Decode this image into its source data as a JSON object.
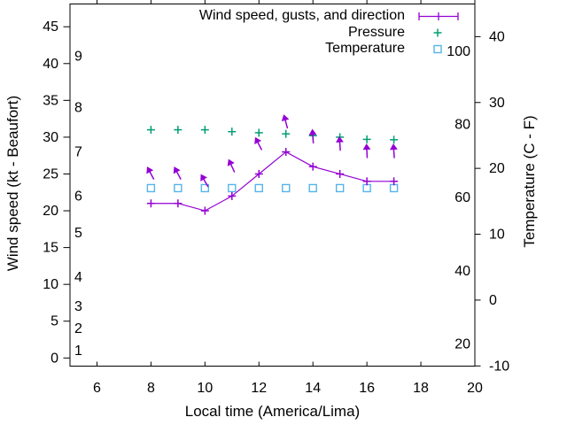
{
  "figure_bg": "#ffffff",
  "text_color": "#000000",
  "chart_data": {
    "type": "line",
    "x_axis": {
      "label": "Local time (America/Lima)",
      "range": [
        5,
        20
      ],
      "tick_labels": [
        6,
        8,
        10,
        12,
        14,
        16,
        18,
        20
      ]
    },
    "y_axis_left": {
      "label": "Wind speed (kt - Beaufort)",
      "range_kt": [
        -1,
        48
      ],
      "tick_labels_kt": [
        0,
        5,
        10,
        15,
        20,
        25,
        30,
        35,
        40,
        45
      ],
      "beaufort_tick_labels": [
        1,
        2,
        3,
        4,
        5,
        6,
        7,
        8,
        9
      ],
      "beaufort_label_positions_kt": [
        1,
        4,
        7,
        11,
        17,
        22,
        28,
        34,
        41
      ]
    },
    "y_axis_right": {
      "label": "Temperature (C - F)",
      "range_c": [
        -10,
        45
      ],
      "tick_labels_c": [
        -10,
        0,
        10,
        20,
        30,
        40
      ],
      "fahrenheit_tick_labels": [
        20,
        40,
        60,
        80,
        100
      ]
    },
    "hours": [
      8,
      9,
      10,
      11,
      12,
      13,
      14,
      15,
      16,
      17
    ],
    "series": [
      {
        "name": "Wind speed, gusts, and direction",
        "color": "#9400d3",
        "style": "line with plus markers and direction arrows at gust height",
        "wind_kt": [
          21,
          21,
          20,
          22,
          25,
          28,
          26,
          25,
          24,
          24
        ],
        "gust_kt": [
          25,
          25,
          24,
          26,
          29,
          32,
          30,
          29,
          28,
          28
        ],
        "arrow_angles_deg_from_up": [
          -28,
          -28,
          -30,
          -25,
          -27,
          -15,
          -4,
          -4,
          -3,
          -4
        ]
      },
      {
        "name": "Pressure",
        "color": "#009e73",
        "style": "plus markers (no visible numeric scale)",
        "values_plotted_on_left_axis": [
          31.0,
          31.0,
          31.0,
          30.75,
          30.6,
          30.45,
          30.2,
          30.0,
          29.7,
          29.65
        ]
      },
      {
        "name": "Temperature",
        "color": "#56b4e9",
        "style": "open square markers",
        "values_c": [
          17,
          17,
          17,
          17,
          17,
          17,
          17,
          17,
          17,
          17
        ]
      }
    ],
    "legend_position": "top-right-inside"
  }
}
